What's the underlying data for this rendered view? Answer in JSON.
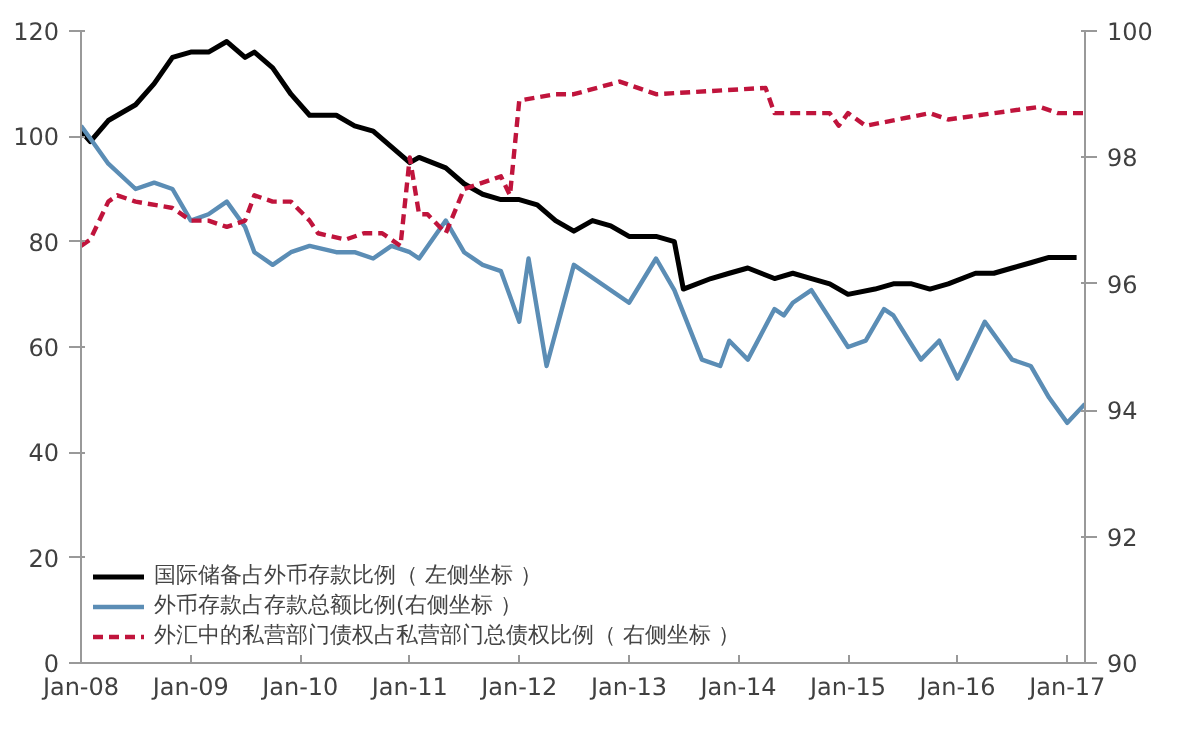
{
  "chart_data": {
    "type": "line",
    "xlim": [
      "2008-01",
      "2017-03"
    ],
    "xticks": [
      {
        "value": "2008-01",
        "label": "Jan-08"
      },
      {
        "value": "2009-01",
        "label": "Jan-09"
      },
      {
        "value": "2010-01",
        "label": "Jan-10"
      },
      {
        "value": "2011-01",
        "label": "Jan-11"
      },
      {
        "value": "2012-01",
        "label": "Jan-12"
      },
      {
        "value": "2013-01",
        "label": "Jan-13"
      },
      {
        "value": "2014-01",
        "label": "Jan-14"
      },
      {
        "value": "2015-01",
        "label": "Jan-15"
      },
      {
        "value": "2016-01",
        "label": "Jan-16"
      },
      {
        "value": "2017-01",
        "label": "Jan-17"
      }
    ],
    "ylim": [
      0,
      120
    ],
    "yticks": [
      0,
      20,
      40,
      60,
      80,
      100,
      120
    ],
    "y2lim": [
      90,
      100
    ],
    "y2ticks": [
      90,
      92,
      94,
      96,
      98,
      100
    ],
    "grid": false,
    "legend": "bottom left",
    "line_style": "solid",
    "series": [
      {
        "name": "国际储备占外币存款比例（ 左侧坐标 ）",
        "color": "#000000",
        "x": [
          "2008-01",
          "2008-02",
          "2008-04",
          "2008-07",
          "2008-09",
          "2008-11",
          "2009-01",
          "2009-03",
          "2009-05",
          "2009-07",
          "2009-08",
          "2009-10",
          "2009-12",
          "2010-02",
          "2010-05",
          "2010-07",
          "2010-09",
          "2010-11",
          "2011-01",
          "2011-02",
          "2011-05",
          "2011-07",
          "2011-09",
          "2011-11",
          "2012-01",
          "2012-03",
          "2012-05",
          "2012-07",
          "2012-09",
          "2012-11",
          "2013-01",
          "2013-04",
          "2013-06",
          "2013-07",
          "2013-10",
          "2013-12",
          "2014-02",
          "2014-05",
          "2014-07",
          "2014-09",
          "2014-11",
          "2015-01",
          "2015-04",
          "2015-06",
          "2015-08",
          "2015-10",
          "2015-12",
          "2016-03",
          "2016-05",
          "2016-07",
          "2016-09",
          "2016-11",
          "2017-02"
        ],
        "values": [
          101,
          99,
          103,
          106,
          110,
          115,
          116,
          116,
          118,
          115,
          116,
          113,
          108,
          104,
          104,
          102,
          101,
          98,
          95,
          96,
          94,
          91,
          89,
          88,
          88,
          87,
          84,
          82,
          84,
          83,
          81,
          81,
          80,
          71,
          73,
          74,
          75,
          73,
          74,
          73,
          72,
          70,
          71,
          72,
          72,
          71,
          72,
          74,
          74,
          75,
          76,
          77,
          77
        ]
      },
      {
        "name": "外币存款占存款总额比例(右侧坐标 ）",
        "color": "#5b8db5",
        "axis": "y2",
        "x": [
          "2008-01",
          "2008-02",
          "2008-04",
          "2008-07",
          "2008-09",
          "2008-11",
          "2009-01",
          "2009-03",
          "2009-05",
          "2009-07",
          "2009-08",
          "2009-10",
          "2009-12",
          "2010-02",
          "2010-05",
          "2010-07",
          "2010-09",
          "2010-11",
          "2011-01",
          "2011-02",
          "2011-05",
          "2011-07",
          "2011-09",
          "2011-11",
          "2012-01",
          "2012-02",
          "2012-04",
          "2012-07",
          "2013-01",
          "2013-04",
          "2013-06",
          "2013-09",
          "2013-11",
          "2013-12",
          "2014-02",
          "2014-05",
          "2014-06",
          "2014-07",
          "2014-09",
          "2015-01",
          "2015-03",
          "2015-05",
          "2015-06",
          "2015-09",
          "2015-11",
          "2016-01",
          "2016-02",
          "2016-04",
          "2016-07",
          "2016-09",
          "2016-11",
          "2017-01",
          "2017-03"
        ],
        "values": [
          98.5,
          98.3,
          97.9,
          97.5,
          97.6,
          97.5,
          97.0,
          97.1,
          97.3,
          96.9,
          96.5,
          96.3,
          96.5,
          96.6,
          96.5,
          96.5,
          96.4,
          96.6,
          96.5,
          96.4,
          97.0,
          96.5,
          96.3,
          96.2,
          95.4,
          96.4,
          94.7,
          96.3,
          95.7,
          96.4,
          95.9,
          94.8,
          94.7,
          95.1,
          94.8,
          95.6,
          95.5,
          95.7,
          95.9,
          95.0,
          95.1,
          95.6,
          95.5,
          94.8,
          95.1,
          94.5,
          94.8,
          95.4,
          94.8,
          94.7,
          94.2,
          93.8,
          94.1
        ]
      },
      {
        "name": "外汇中的私营部门债权占私营部门总债权比例（ 右侧坐标 ）",
        "color": "#c0143c",
        "axis": "y2",
        "line_style": "dashed",
        "x": [
          "2008-01",
          "2008-02",
          "2008-04",
          "2008-05",
          "2008-07",
          "2008-11",
          "2009-01",
          "2009-03",
          "2009-05",
          "2009-07",
          "2009-08",
          "2009-10",
          "2009-12",
          "2010-02",
          "2010-03",
          "2010-06",
          "2010-08",
          "2010-10",
          "2010-12",
          "2011-01",
          "2011-02",
          "2011-03",
          "2011-05",
          "2011-07",
          "2011-09",
          "2011-11",
          "2011-12",
          "2012-01",
          "2012-05",
          "2012-07",
          "2012-12",
          "2013-04",
          "2014-04",
          "2014-05",
          "2014-11",
          "2014-12",
          "2015-01",
          "2015-03",
          "2015-10",
          "2015-12",
          "2016-10",
          "2016-12",
          "2017-03"
        ],
        "values": [
          96.6,
          96.7,
          97.3,
          97.4,
          97.3,
          97.2,
          97.0,
          97.0,
          96.9,
          97.0,
          97.4,
          97.3,
          97.3,
          97.0,
          96.8,
          96.7,
          96.8,
          96.8,
          96.6,
          98.0,
          97.1,
          97.1,
          96.8,
          97.5,
          97.6,
          97.7,
          97.4,
          98.9,
          99.0,
          99.0,
          99.2,
          99.0,
          99.1,
          98.7,
          98.7,
          98.5,
          98.7,
          98.5,
          98.7,
          98.6,
          98.8,
          98.7,
          98.7
        ]
      }
    ]
  }
}
